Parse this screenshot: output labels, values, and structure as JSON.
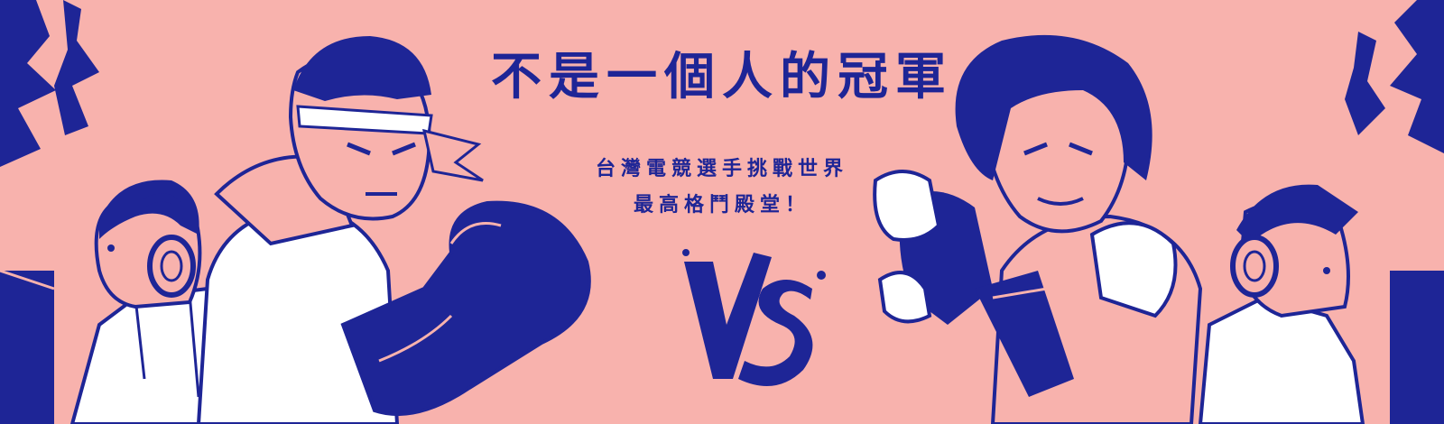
{
  "banner": {
    "title": "不是一個人的冠軍",
    "subtitle_line1": "台灣電競選手挑戰世界",
    "subtitle_line2": "最高格鬥殿堂！",
    "vs_text": "VS"
  },
  "colors": {
    "background": "#f8b2ad",
    "ink": "#1e2596",
    "paper": "#ffffff"
  },
  "illustration": {
    "left": [
      "headphone-player-left",
      "headband-fighter",
      "boxing-glove"
    ],
    "right": [
      "headphone-player-right",
      "black-hair-fighter",
      "fist"
    ]
  }
}
